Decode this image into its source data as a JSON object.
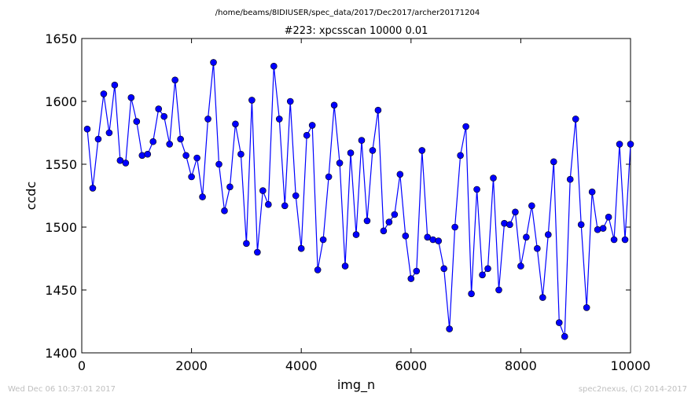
{
  "footer": {
    "timestamp": "Wed Dec 06 10:37:01 2017",
    "credit": "spec2nexus, (C) 2014-2017"
  },
  "chart_data": {
    "type": "line",
    "suptitle": "/home/beams/8IDIUSER/spec_data/2017/Dec2017/archer20171204",
    "title": "#223: xpcsscan 10000 0.01",
    "xlabel": "img_n",
    "ylabel": "ccdc",
    "xlim": [
      0,
      10000
    ],
    "ylim": [
      1400,
      1650
    ],
    "xticks": [
      0,
      2000,
      4000,
      6000,
      8000,
      10000
    ],
    "yticks": [
      1400,
      1450,
      1500,
      1550,
      1600,
      1650
    ],
    "grid": false,
    "line_color": "#0000ff",
    "marker": "circle",
    "x": [
      100,
      200,
      300,
      400,
      500,
      600,
      700,
      800,
      900,
      1000,
      1100,
      1200,
      1300,
      1400,
      1500,
      1600,
      1700,
      1800,
      1900,
      2000,
      2100,
      2200,
      2300,
      2400,
      2500,
      2600,
      2700,
      2800,
      2900,
      3000,
      3100,
      3200,
      3300,
      3400,
      3500,
      3600,
      3700,
      3800,
      3900,
      4000,
      4100,
      4200,
      4300,
      4400,
      4500,
      4600,
      4700,
      4800,
      4900,
      5000,
      5100,
      5200,
      5300,
      5400,
      5500,
      5600,
      5700,
      5800,
      5900,
      6000,
      6100,
      6200,
      6300,
      6400,
      6500,
      6600,
      6700,
      6800,
      6900,
      7000,
      7100,
      7200,
      7300,
      7400,
      7500,
      7600,
      7700,
      7800,
      7900,
      8000,
      8100,
      8200,
      8300,
      8400,
      8500,
      8600,
      8700,
      8800,
      8900,
      9000,
      9100,
      9200,
      9300,
      9400,
      9500,
      9600,
      9700,
      9800,
      9900,
      10000
    ],
    "y": [
      1578,
      1531,
      1570,
      1606,
      1575,
      1613,
      1553,
      1551,
      1603,
      1584,
      1557,
      1558,
      1568,
      1594,
      1588,
      1566,
      1617,
      1570,
      1557,
      1540,
      1555,
      1524,
      1586,
      1631,
      1550,
      1513,
      1532,
      1582,
      1558,
      1487,
      1601,
      1480,
      1529,
      1518,
      1628,
      1586,
      1517,
      1600,
      1525,
      1483,
      1573,
      1581,
      1466,
      1490,
      1540,
      1597,
      1551,
      1469,
      1559,
      1494,
      1569,
      1505,
      1561,
      1593,
      1497,
      1504,
      1510,
      1542,
      1493,
      1459,
      1465,
      1561,
      1492,
      1490,
      1489,
      1467,
      1419,
      1500,
      1557,
      1580,
      1447,
      1530,
      1462,
      1467,
      1539,
      1450,
      1503,
      1502,
      1512,
      1469,
      1492,
      1517,
      1483,
      1444,
      1494,
      1552,
      1424,
      1413,
      1538,
      1586,
      1502,
      1436,
      1528,
      1498,
      1499,
      1508,
      1490,
      1566,
      1490,
      1566
    ]
  }
}
